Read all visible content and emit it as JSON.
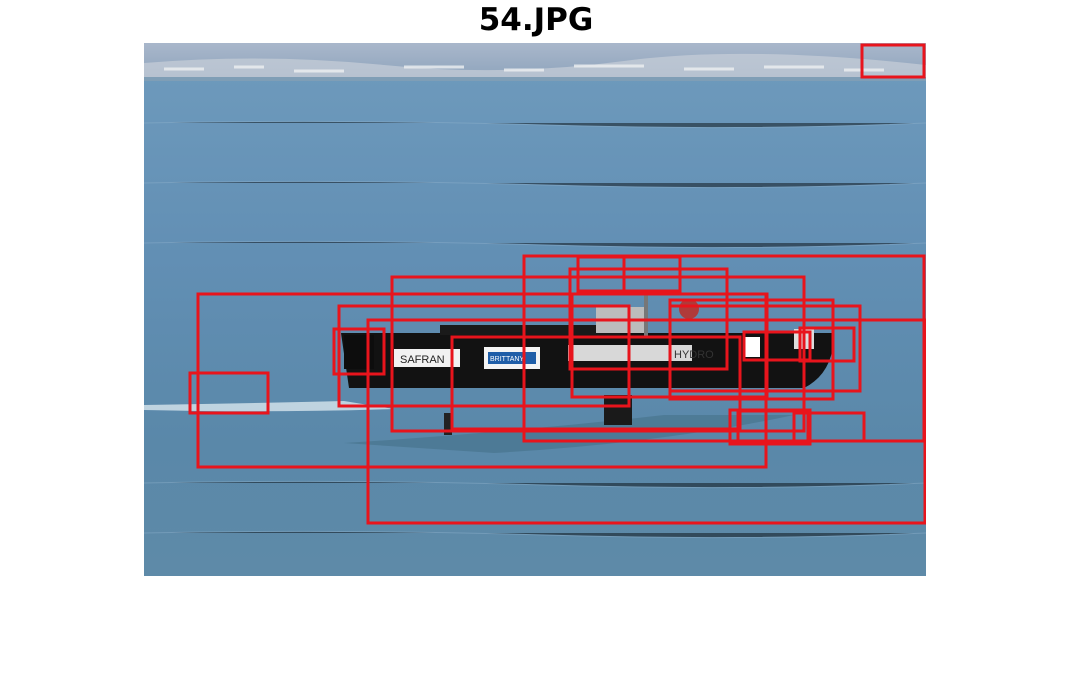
{
  "figure": {
    "title": "54.JPG",
    "box_color": "#e8141c",
    "sponsor_labels": [
      "SAFRAN",
      "BRITTANY",
      "HYDRO"
    ],
    "detection_box_count": 20
  }
}
